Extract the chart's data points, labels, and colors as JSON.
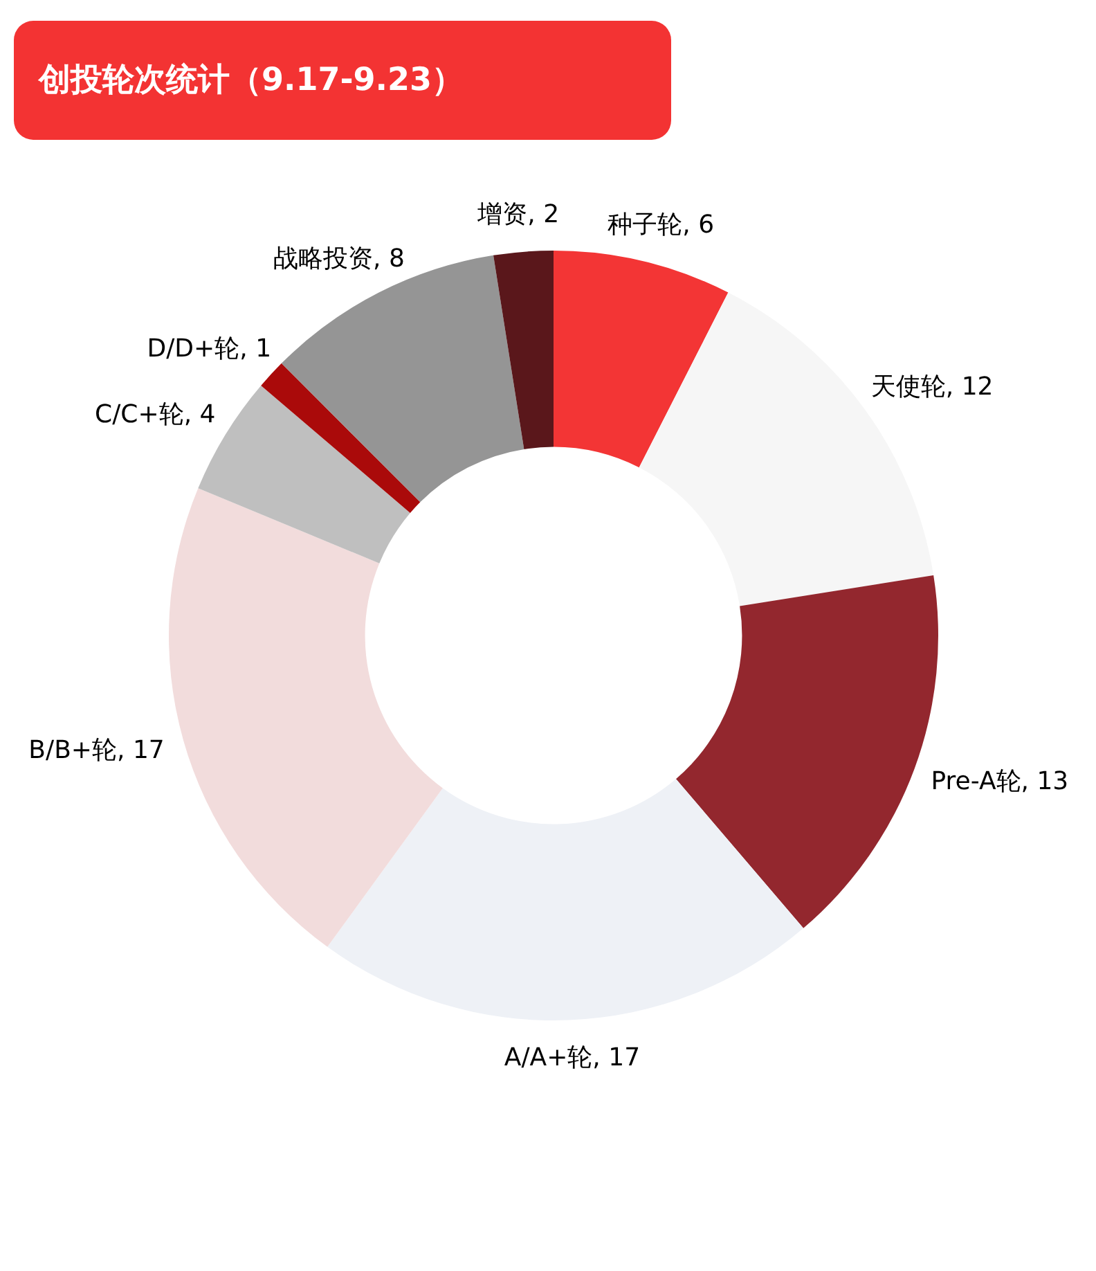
{
  "chart_data": {
    "type": "donut",
    "title": "创投轮次统计（9.17-9.23）",
    "categories": [
      "种子轮",
      "天使轮",
      "Pre-A轮",
      "A/A+轮",
      "B/B+轮",
      "C/C+轮",
      "D/D+轮",
      "战略投资",
      "增资"
    ],
    "values": [
      6,
      12,
      13,
      17,
      17,
      4,
      1,
      8,
      2
    ],
    "value_labels": [
      ", 6",
      ", 12",
      ", 13",
      ", 17",
      ", 17",
      ", 4",
      ", 1",
      ", 8",
      ", 2"
    ],
    "colors": [
      "#f33535",
      "#f6f6f6",
      "#93272e",
      "#eef1f6",
      "#f2dcdc",
      "#bfbfbf",
      "#aa0a0a",
      "#959595",
      "#5a171b"
    ]
  }
}
